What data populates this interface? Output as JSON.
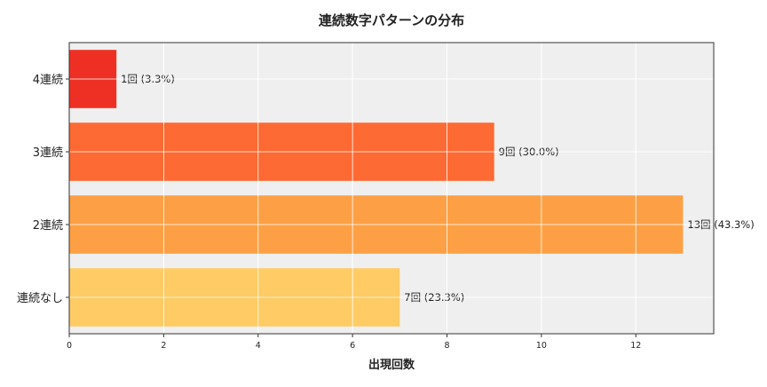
{
  "chart_data": {
    "type": "bar",
    "orientation": "horizontal",
    "title": "連続数字パターンの分布",
    "xlabel": "出現回数",
    "ylabel": "",
    "categories": [
      "連続なし",
      "2連続",
      "3連続",
      "4連続"
    ],
    "values": [
      7,
      13,
      9,
      1
    ],
    "data_labels": [
      "7回 (23.3%)",
      "13回 (43.3%)",
      "9回 (30.0%)",
      "1回 (3.3%)"
    ],
    "colors": [
      "#fecb65",
      "#fda045",
      "#fe6a33",
      "#ee3024"
    ],
    "xlim": [
      0,
      13.65
    ],
    "xticks": [
      0,
      2,
      4,
      6,
      8,
      10,
      12
    ],
    "grid": true,
    "background": "#efefef"
  }
}
